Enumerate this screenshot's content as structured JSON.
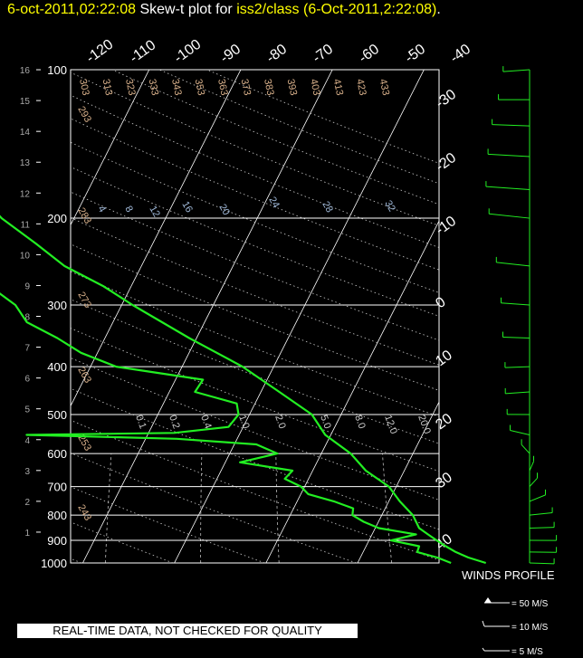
{
  "title": {
    "date": "6-oct-2011,02:22:08",
    "middle": " Skew-t plot for ",
    "station": "iss2/class (6-Oct-2011,2:22:08)",
    "end": "."
  },
  "banner": "REAL-TIME DATA, NOT CHECKED FOR QUALITY",
  "colors": {
    "background": "#000000",
    "title_yellow": "#ffff00",
    "trace_green": "#22ee22",
    "wind_green": "#22ee22",
    "grid_white": "#ffffff",
    "adiabat_tan": "#d8b08a",
    "mixing_blue": "#9fb8d8"
  },
  "chart_data": {
    "type": "line",
    "title": "Skew-t plot for iss2/class (6-Oct-2011,2:22:08)",
    "pressure_axis": {
      "scale": "log",
      "range": [
        1000,
        100
      ],
      "ticks": [
        1000,
        900,
        800,
        700,
        600,
        500,
        400,
        300,
        200,
        100
      ]
    },
    "height_axis": {
      "range": [
        0,
        16
      ],
      "ticks": [
        1,
        2,
        3,
        4,
        5,
        6,
        7,
        8,
        9,
        10,
        11,
        12,
        13,
        14,
        15,
        16
      ]
    },
    "top_temperature_labels": [
      "-120",
      "-110",
      "-100",
      "-90",
      "-80",
      "-70",
      "-60",
      "-50",
      "-40"
    ],
    "right_temperature_labels": [
      "-30",
      "-20",
      "-10",
      "0",
      "10",
      "20",
      "30",
      "40"
    ],
    "dry_adiabat_labels": [
      "293",
      "283",
      "273",
      "263",
      "253",
      "243"
    ],
    "top_adiabat_labels": [
      "303",
      "313",
      "323",
      "333",
      "343",
      "353",
      "363",
      "373",
      "383",
      "393",
      "403",
      "413",
      "423",
      "433"
    ],
    "moist_adiabat_labels": [
      "4",
      "8",
      "12",
      "16",
      "20",
      "24",
      "28",
      "32"
    ],
    "mixing_ratio_labels": [
      "0.1",
      "0.2",
      "0.4",
      "1.0",
      "2.0",
      "5.0",
      "8.0",
      "12.0",
      "20.0"
    ],
    "series": [
      {
        "kind": "temperature",
        "points": [
          [
            1000,
            14
          ],
          [
            975,
            11.8
          ],
          [
            950,
            10.1
          ],
          [
            925,
            8.7
          ],
          [
            900,
            7.4
          ],
          [
            875,
            6.1
          ],
          [
            850,
            4.8
          ],
          [
            800,
            3.4
          ],
          [
            750,
            1.2
          ],
          [
            700,
            -0.8
          ],
          [
            650,
            -4.2
          ],
          [
            600,
            -6.8
          ],
          [
            550,
            -10.6
          ],
          [
            500,
            -13.2
          ],
          [
            450,
            -18.0
          ],
          [
            400,
            -23.4
          ],
          [
            350,
            -30.8
          ],
          [
            300,
            -38.8
          ],
          [
            275,
            -43.0
          ],
          [
            250,
            -48.4
          ],
          [
            225,
            -52.8
          ],
          [
            200,
            -57.9
          ],
          [
            175,
            -62.4
          ],
          [
            150,
            -66.2
          ],
          [
            140,
            -67.5
          ],
          [
            130,
            -71.8
          ],
          [
            120,
            -72.2
          ],
          [
            115,
            -73.6
          ],
          [
            110,
            -75.2
          ],
          [
            105,
            -75.4
          ],
          [
            100,
            -75.9
          ]
        ]
      },
      {
        "kind": "dewpoint",
        "points": [
          [
            1000,
            10.2
          ],
          [
            975,
            8.4
          ],
          [
            950,
            5.9
          ],
          [
            925,
            5.8
          ],
          [
            900,
            2.4
          ],
          [
            875,
            4.8
          ],
          [
            850,
            0.4
          ],
          [
            825,
            -1.6
          ],
          [
            800,
            -3.2
          ],
          [
            775,
            -3.5
          ],
          [
            750,
            -6.0
          ],
          [
            725,
            -9.2
          ],
          [
            700,
            -10.4
          ],
          [
            675,
            -12.6
          ],
          [
            650,
            -12.2
          ],
          [
            625,
            -18.4
          ],
          [
            600,
            -14.8
          ],
          [
            575,
            -17.6
          ],
          [
            560,
            -26.6
          ],
          [
            550,
            -43.2
          ],
          [
            545,
            -27.2
          ],
          [
            530,
            -21.6
          ],
          [
            500,
            -21.2
          ],
          [
            475,
            -22.0
          ],
          [
            450,
            -27.2
          ],
          [
            425,
            -27.0
          ],
          [
            400,
            -37.2
          ],
          [
            375,
            -41.8
          ],
          [
            350,
            -45.2
          ],
          [
            325,
            -49.4
          ],
          [
            300,
            -51.6
          ],
          [
            275,
            -55.4
          ],
          [
            250,
            -61.4
          ],
          [
            225,
            -63.2
          ],
          [
            200,
            -69.6
          ],
          [
            175,
            -73.2
          ],
          [
            150,
            -74.6
          ],
          [
            140,
            -77.6
          ],
          [
            130,
            -81.2
          ],
          [
            120,
            -82.0
          ],
          [
            110,
            -84.4
          ],
          [
            100,
            -86.0
          ]
        ]
      }
    ],
    "winds": {
      "title": "WINDS PROFILE",
      "legend": [
        "= 50 M/S",
        "= 10 M/S",
        "= 5 M/S"
      ],
      "profile": [
        [
          1000,
          95,
          6
        ],
        [
          950,
          92,
          8
        ],
        [
          900,
          90,
          8
        ],
        [
          850,
          85,
          6
        ],
        [
          800,
          75,
          5
        ],
        [
          750,
          45,
          4
        ],
        [
          700,
          20,
          4
        ],
        [
          650,
          10,
          5
        ],
        [
          600,
          340,
          5
        ],
        [
          550,
          300,
          4
        ],
        [
          500,
          270,
          4
        ],
        [
          450,
          260,
          6
        ],
        [
          400,
          265,
          6
        ],
        [
          350,
          275,
          8
        ],
        [
          300,
          280,
          10
        ],
        [
          250,
          285,
          15
        ],
        [
          200,
          285,
          22
        ],
        [
          175,
          280,
          24
        ],
        [
          150,
          278,
          22
        ],
        [
          130,
          275,
          18
        ],
        [
          115,
          270,
          12
        ],
        [
          100,
          260,
          8
        ]
      ]
    }
  }
}
